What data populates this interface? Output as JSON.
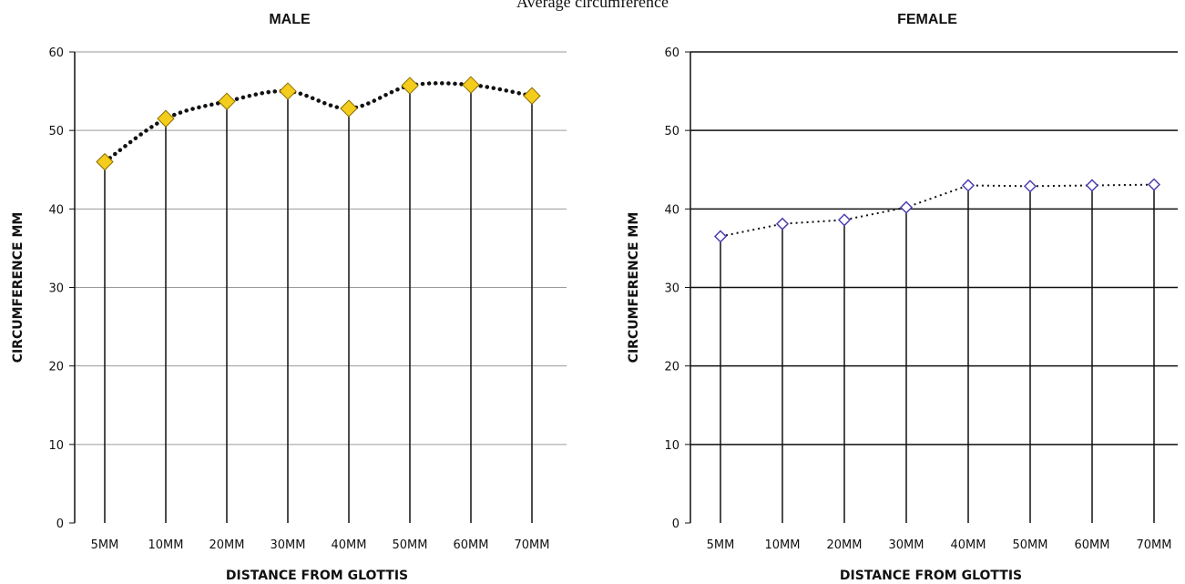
{
  "figure_title": "Average circumference",
  "chart_data": [
    {
      "type": "line",
      "title": "MALE",
      "xlabel": "DISTANCE FROM GLOTTIS",
      "ylabel": "CIRCUMFERENCE MM",
      "categories": [
        "5MM",
        "10MM",
        "20MM",
        "30MM",
        "40MM",
        "50MM",
        "60MM",
        "70MM"
      ],
      "values": [
        46.0,
        51.5,
        53.7,
        55.0,
        52.8,
        55.7,
        55.8,
        54.4
      ],
      "ylim": [
        0,
        60
      ],
      "yticks": [
        0,
        10,
        20,
        30,
        40,
        50,
        60
      ],
      "grid": true,
      "drop_lines": true,
      "marker": "diamond",
      "colors": {
        "marker_fill": "#f4cc1c",
        "marker_stroke": "#8a6d00",
        "line": "#111111",
        "grid": "#9a9a9a",
        "drop": "#111111"
      }
    },
    {
      "type": "line",
      "title": "FEMALE",
      "xlabel": "DISTANCE FROM GLOTTIS",
      "ylabel": "CIRCUMFERENCE MM",
      "categories": [
        "5MM",
        "10MM",
        "20MM",
        "30MM",
        "40MM",
        "50MM",
        "60MM",
        "70MM"
      ],
      "values": [
        36.5,
        38.1,
        38.6,
        40.2,
        43.0,
        42.9,
        43.0,
        43.1
      ],
      "ylim": [
        0,
        60
      ],
      "yticks": [
        0,
        10,
        20,
        30,
        40,
        50,
        60
      ],
      "grid": true,
      "drop_lines": true,
      "marker": "diamond",
      "colors": {
        "marker_fill": "#ffffff",
        "marker_stroke": "#4b3fb0",
        "line": "#111111",
        "grid": "#111111",
        "drop": "#111111"
      }
    }
  ]
}
